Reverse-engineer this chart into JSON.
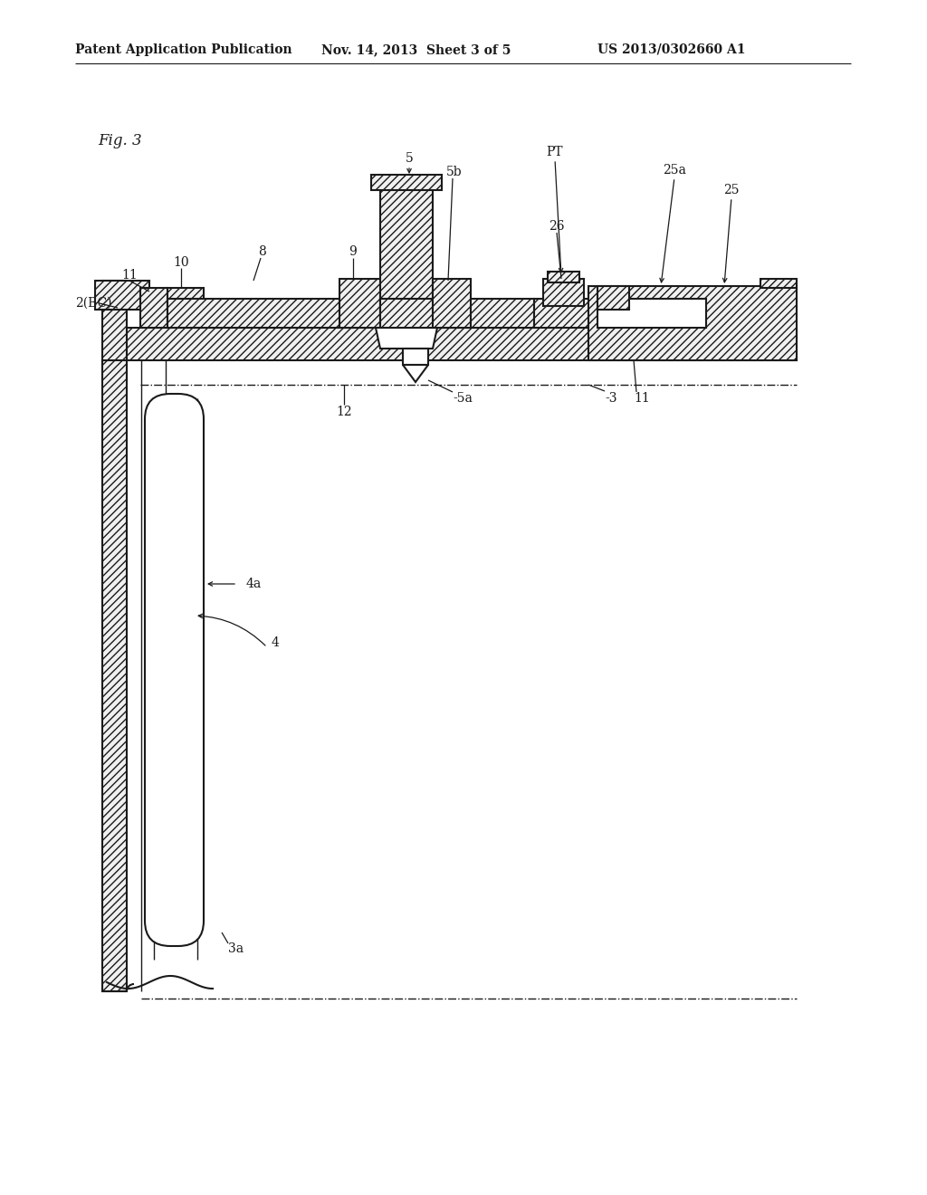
{
  "bg_color": "#ffffff",
  "header_left": "Patent Application Publication",
  "header_mid": "Nov. 14, 2013  Sheet 3 of 5",
  "header_right": "US 2013/0302660 A1",
  "fig_label": "Fig. 3",
  "lc": "#1a1a1a",
  "lw_main": 1.5,
  "lw_thin": 1.0
}
